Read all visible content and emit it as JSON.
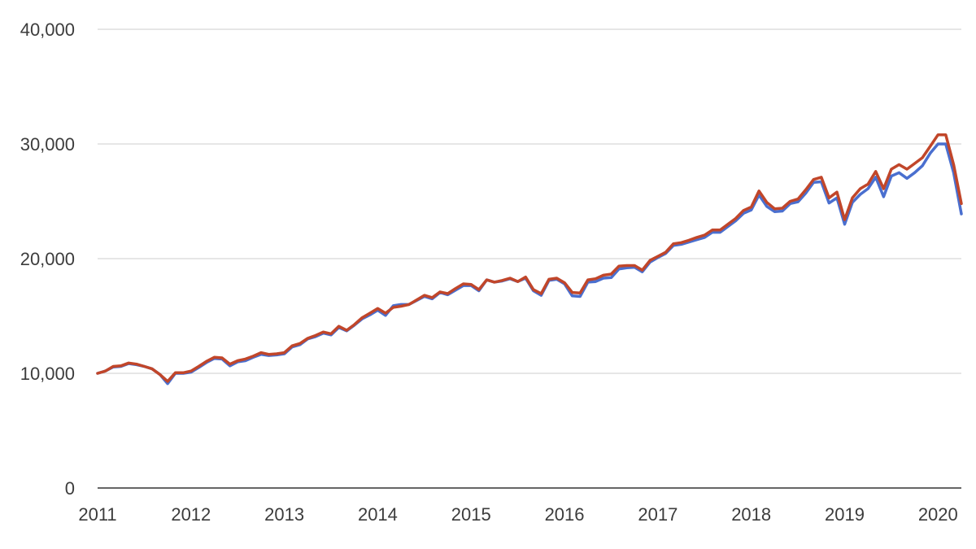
{
  "chart_data": {
    "type": "line",
    "title": "",
    "xlabel": "",
    "ylabel": "",
    "xlim": [
      2011.0,
      2020.25
    ],
    "ylim": [
      0,
      40000
    ],
    "y_ticks": [
      0,
      10000,
      20000,
      30000,
      40000
    ],
    "y_tick_labels": [
      "0",
      "10,000",
      "20,000",
      "30,000",
      "40,000"
    ],
    "x_ticks": [
      2011,
      2012,
      2013,
      2014,
      2015,
      2016,
      2017,
      2018,
      2019,
      2020
    ],
    "x_tick_labels": [
      "2011",
      "2012",
      "2013",
      "2014",
      "2015",
      "2016",
      "2017",
      "2018",
      "2019",
      "2020"
    ],
    "grid": true,
    "legend": "none",
    "x": [
      2011.0,
      2011.083,
      2011.167,
      2011.25,
      2011.333,
      2011.417,
      2011.5,
      2011.583,
      2011.667,
      2011.75,
      2011.833,
      2011.917,
      2012.0,
      2012.083,
      2012.167,
      2012.25,
      2012.333,
      2012.417,
      2012.5,
      2012.583,
      2012.667,
      2012.75,
      2012.833,
      2012.917,
      2013.0,
      2013.083,
      2013.167,
      2013.25,
      2013.333,
      2013.417,
      2013.5,
      2013.583,
      2013.667,
      2013.75,
      2013.833,
      2013.917,
      2014.0,
      2014.083,
      2014.167,
      2014.25,
      2014.333,
      2014.417,
      2014.5,
      2014.583,
      2014.667,
      2014.75,
      2014.833,
      2014.917,
      2015.0,
      2015.083,
      2015.167,
      2015.25,
      2015.333,
      2015.417,
      2015.5,
      2015.583,
      2015.667,
      2015.75,
      2015.833,
      2015.917,
      2016.0,
      2016.083,
      2016.167,
      2016.25,
      2016.333,
      2016.417,
      2016.5,
      2016.583,
      2016.667,
      2016.75,
      2016.833,
      2016.917,
      2017.0,
      2017.083,
      2017.167,
      2017.25,
      2017.333,
      2017.417,
      2017.5,
      2017.583,
      2017.667,
      2017.75,
      2017.833,
      2017.917,
      2018.0,
      2018.083,
      2018.167,
      2018.25,
      2018.333,
      2018.417,
      2018.5,
      2018.583,
      2018.667,
      2018.75,
      2018.833,
      2018.917,
      2019.0,
      2019.083,
      2019.167,
      2019.25,
      2019.333,
      2019.417,
      2019.5,
      2019.583,
      2019.667,
      2019.75,
      2019.833,
      2019.917,
      2020.0,
      2020.083,
      2020.167,
      2020.25
    ],
    "series": [
      {
        "color": "#4a6fcf",
        "values": [
          10000,
          10200,
          10550,
          10600,
          10850,
          10750,
          10600,
          10400,
          9900,
          9100,
          10000,
          10000,
          10100,
          10500,
          10950,
          11300,
          11250,
          10650,
          11000,
          11100,
          11400,
          11650,
          11550,
          11600,
          11700,
          12300,
          12500,
          13000,
          13200,
          13500,
          13350,
          14000,
          13700,
          14200,
          14750,
          15100,
          15500,
          15050,
          15900,
          16000,
          16000,
          16350,
          16700,
          16500,
          17050,
          16850,
          17250,
          17650,
          17650,
          17200,
          18150,
          17950,
          18050,
          18250,
          18000,
          18300,
          17200,
          16800,
          18100,
          18200,
          17800,
          16750,
          16700,
          17950,
          18000,
          18300,
          18350,
          19100,
          19200,
          19250,
          18850,
          19700,
          20100,
          20450,
          21150,
          21250,
          21450,
          21650,
          21850,
          22300,
          22300,
          22800,
          23300,
          23950,
          24250,
          25550,
          24550,
          24100,
          24150,
          24800,
          24950,
          25700,
          26650,
          26700,
          24850,
          25300,
          23000,
          24900,
          25600,
          26100,
          27100,
          25400,
          27200,
          27500,
          27000,
          27500,
          28100,
          29200,
          30000,
          30000,
          27500,
          23900
        ]
      },
      {
        "color": "#c1462a",
        "values": [
          10000,
          10200,
          10600,
          10650,
          10900,
          10800,
          10600,
          10400,
          9900,
          9300,
          10050,
          10050,
          10200,
          10600,
          11050,
          11400,
          11350,
          10800,
          11100,
          11250,
          11500,
          11800,
          11650,
          11700,
          11800,
          12400,
          12600,
          13050,
          13300,
          13600,
          13450,
          14100,
          13750,
          14250,
          14850,
          15250,
          15650,
          15250,
          15750,
          15850,
          16000,
          16400,
          16800,
          16600,
          17100,
          16950,
          17400,
          17800,
          17750,
          17300,
          18150,
          17950,
          18100,
          18300,
          18000,
          18400,
          17300,
          16950,
          18200,
          18300,
          17900,
          17050,
          17000,
          18150,
          18250,
          18550,
          18650,
          19350,
          19400,
          19400,
          19000,
          19850,
          20200,
          20550,
          21300,
          21400,
          21600,
          21850,
          22050,
          22500,
          22500,
          23000,
          23500,
          24200,
          24500,
          25900,
          24900,
          24350,
          24400,
          25000,
          25200,
          26000,
          26900,
          27100,
          25300,
          25800,
          23400,
          25300,
          26100,
          26500,
          27600,
          26100,
          27800,
          28200,
          27800,
          28300,
          28800,
          29800,
          30800,
          30800,
          28200,
          24800
        ]
      }
    ]
  }
}
